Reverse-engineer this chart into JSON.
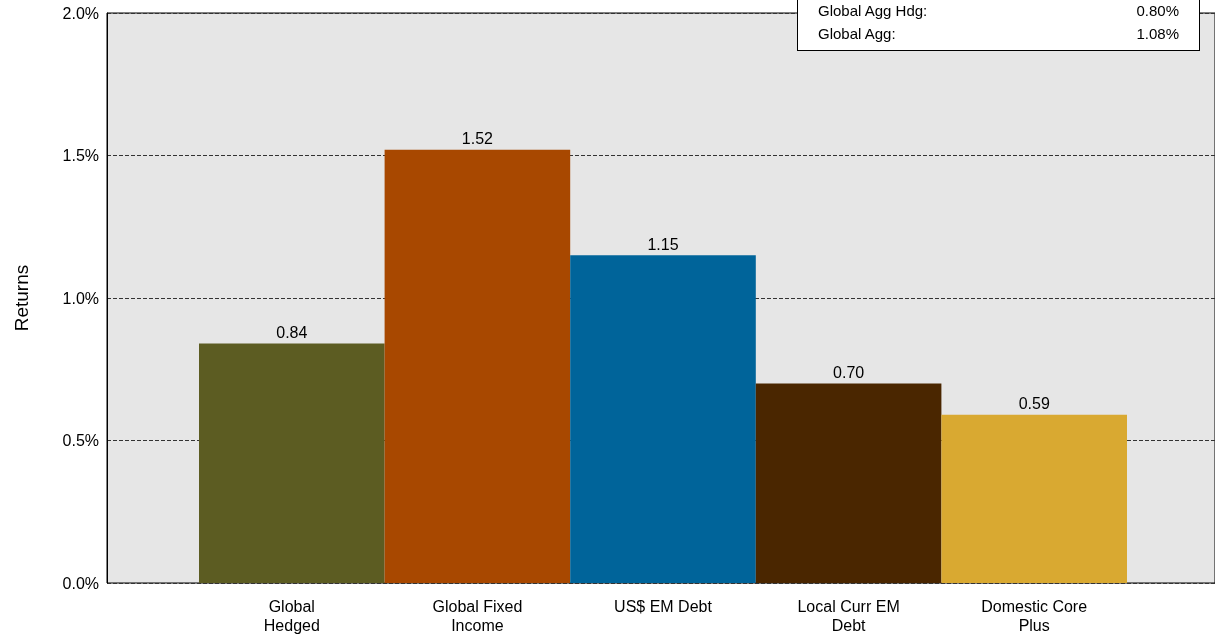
{
  "chart_data": {
    "type": "bar",
    "ylabel": "Returns",
    "categories": [
      "Global\nHedged",
      "Global Fixed\nIncome",
      "US$ EM Debt",
      "Local Curr EM\nDebt",
      "Domestic Core\nPlus"
    ],
    "values": [
      0.84,
      1.52,
      1.15,
      0.7,
      0.59
    ],
    "colors": [
      "#5c5c22",
      "#a84800",
      "#00649a",
      "#4a2600",
      "#d9a931"
    ],
    "ylim": [
      0,
      2
    ],
    "yticks": [
      {
        "value": 0,
        "label": "0.0%"
      },
      {
        "value": 0.5,
        "label": "0.5%"
      },
      {
        "value": 1,
        "label": "1.0%"
      },
      {
        "value": 1.5,
        "label": "1.5%"
      },
      {
        "value": 2,
        "label": "2.0%"
      }
    ],
    "grid": "y",
    "value_labels": [
      "0.84",
      "1.52",
      "1.15",
      "0.70",
      "0.59"
    ],
    "annotations": [
      "Global Agg Hdg: 0.80%",
      "Global Agg: 1.08%"
    ]
  }
}
